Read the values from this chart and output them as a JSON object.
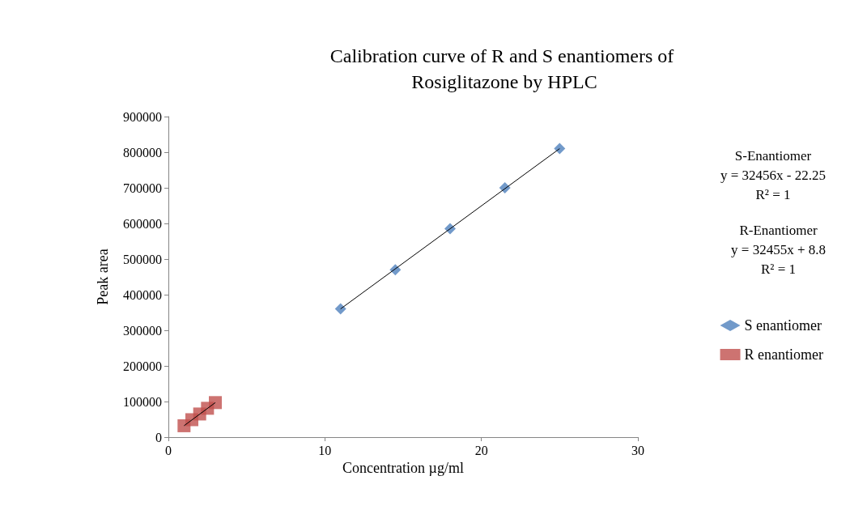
{
  "chart_data": {
    "type": "scatter",
    "title": "Calibration curve of R and S enantiomers of Rosiglitazone by HPLC",
    "xlabel": "Concentration µg/ml",
    "ylabel": "Peak area",
    "xlim": [
      0,
      30
    ],
    "xticks": [
      0,
      10,
      20,
      30
    ],
    "ylim": [
      0,
      900000
    ],
    "yticks": [
      0,
      100000,
      200000,
      300000,
      400000,
      500000,
      600000,
      700000,
      800000,
      900000
    ],
    "grid": false,
    "legend": "right",
    "annotations": [
      "S-Enantiomer\ny = 32456x - 22.25\nR² = 1",
      "R-Enantiomer\ny = 32455x + 8.8\nR² = 1"
    ],
    "series": [
      {
        "name": "S enantiomer",
        "color": "#4f81bd",
        "marker": "diamond",
        "x": [
          11,
          14.5,
          18,
          21.5,
          25
        ],
        "values": [
          360000,
          470000,
          585000,
          700000,
          810000
        ]
      },
      {
        "name": "R enantiomer",
        "color": "#c0504d",
        "marker": "square",
        "x": [
          1,
          1.5,
          2,
          2.5,
          3
        ],
        "values": [
          32000,
          49000,
          65000,
          81000,
          97000
        ]
      },
      {
        "type": "line",
        "color": "#000000",
        "marker": "none",
        "x": [
          11,
          25
        ],
        "values": [
          360000,
          810000
        ]
      },
      {
        "type": "line",
        "color": "#000000",
        "marker": "none",
        "x": [
          1,
          3
        ],
        "values": [
          32000,
          97000
        ]
      }
    ]
  }
}
